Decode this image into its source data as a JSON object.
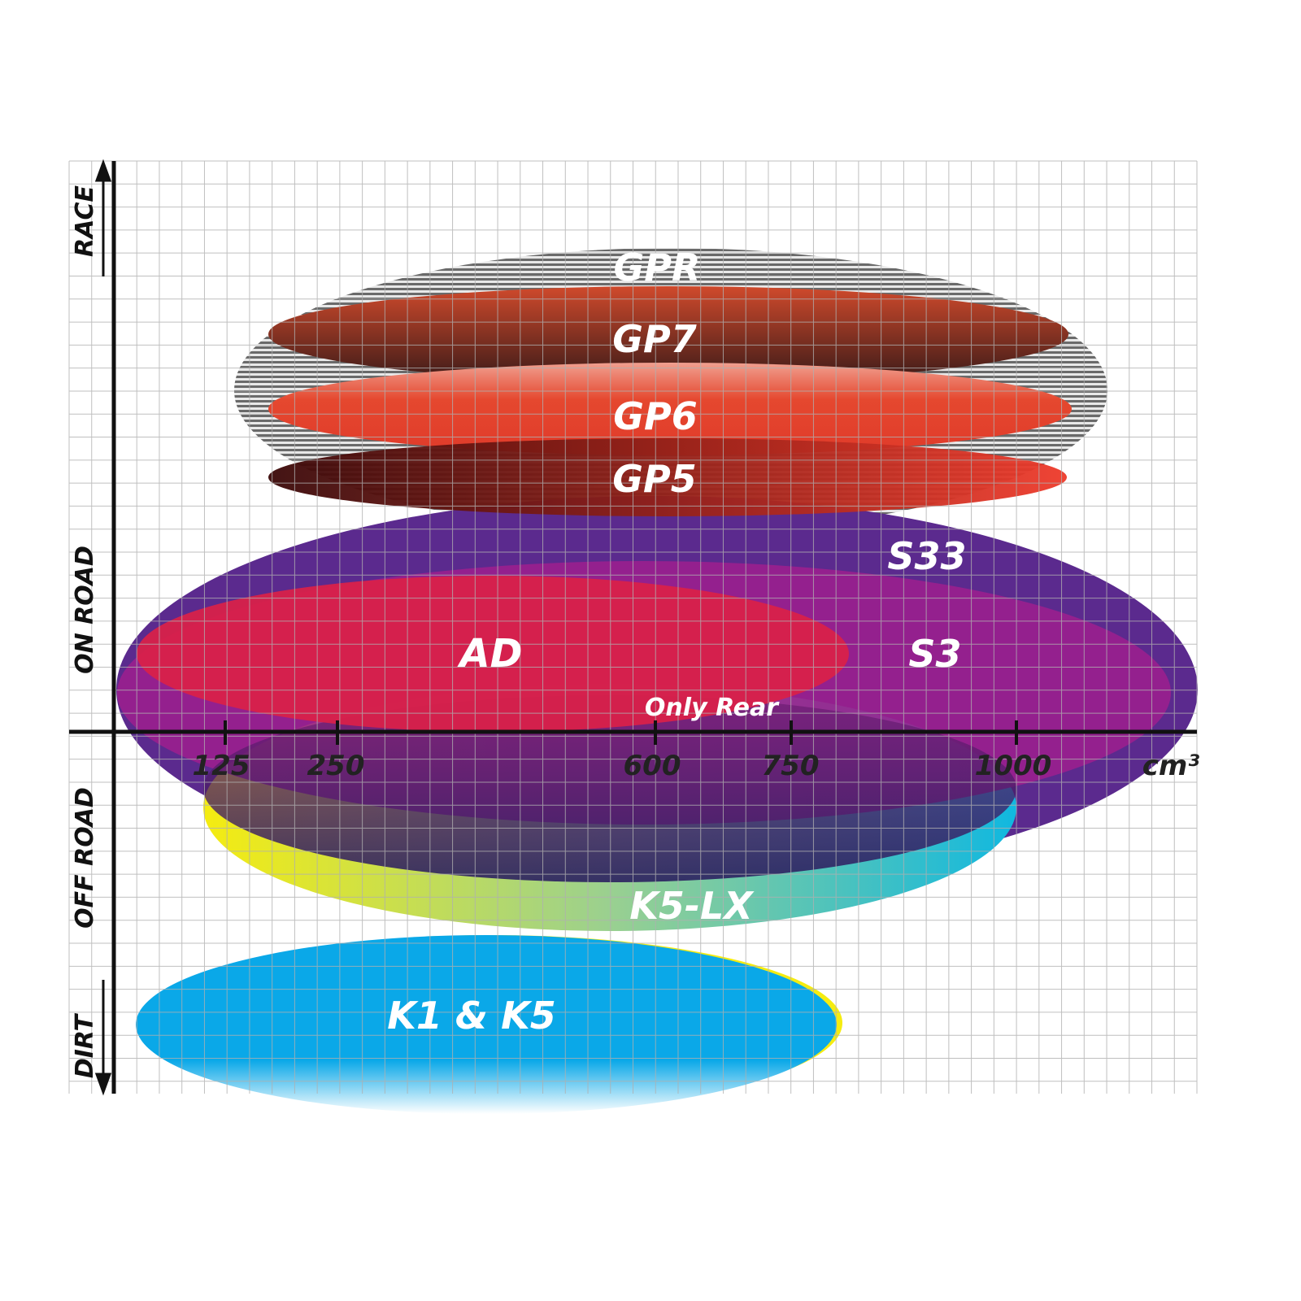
{
  "x_axis": {
    "unit": "cm³",
    "ticks": [
      "125",
      "250",
      "600",
      "750",
      "1000"
    ]
  },
  "y_axis": {
    "labels": [
      "RACE",
      "ON ROAD",
      "OFF ROAD",
      "DIRT"
    ]
  },
  "products": [
    {
      "name": "GPR",
      "color": "#9a9a9a"
    },
    {
      "name": "GP7",
      "color": "#a0402a"
    },
    {
      "name": "GP6",
      "color": "#e5482f"
    },
    {
      "name": "GP5",
      "color": "#b0201a"
    },
    {
      "name": "S33",
      "color": "#5b2a8e"
    },
    {
      "name": "S3",
      "color": "#9a1f8e"
    },
    {
      "name": "AD",
      "color": "#d8214a"
    },
    {
      "name": "Only Rear",
      "color": "#5a2a6a"
    },
    {
      "name": "K5-LX",
      "color": "#20b8d8"
    },
    {
      "name": "K1 & K5",
      "color": "#0aa8e8"
    }
  ]
}
